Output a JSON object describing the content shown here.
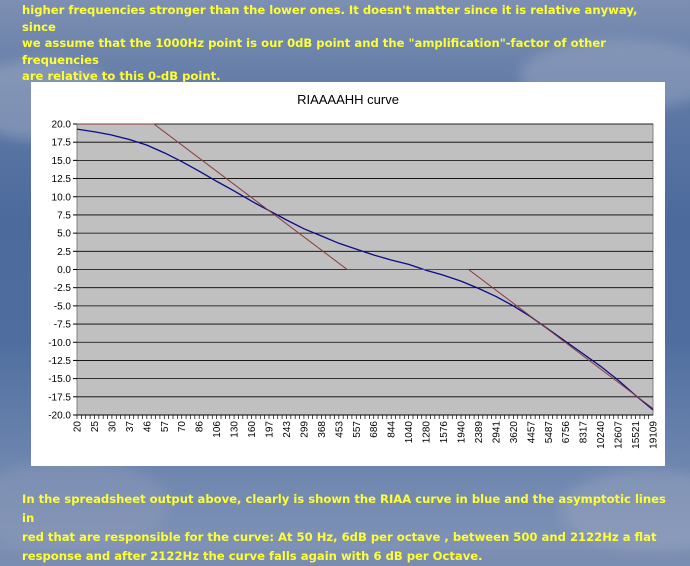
{
  "text": {
    "top_lines": [
      "higher frequencies stronger than the lower ones. It doesn't matter since it is relative anyway, since",
      "we assume that the 1000Hz point is our 0dB point and the \"amplification\"-factor of other frequencies",
      "are relative to this 0-dB point."
    ],
    "bottom_lines": [
      "In the spreadsheet output above, clearly is shown the RIAA curve in blue and the asymptotic lines in",
      "red that are responsible for the curve: At 50 Hz, 6dB per octave , between 500 and 2122Hz a flat",
      "response and after 2122Hz the curve falls again with 6 dB per Octave."
    ]
  },
  "colors": {
    "text": "#ffff33",
    "plot_bg": "#c0c0c0",
    "riaa": "#0a0a8c",
    "asymptote": "#8b3a3a"
  },
  "chart_data": {
    "type": "line",
    "title": "RIAAAAHH  curve",
    "x_scale": "log",
    "x_tick_labels": [
      "20",
      "25",
      "30",
      "37",
      "46",
      "57",
      "70",
      "86",
      "106",
      "130",
      "160",
      "197",
      "243",
      "299",
      "368",
      "453",
      "557",
      "686",
      "844",
      "1040",
      "1280",
      "1576",
      "1940",
      "2389",
      "2941",
      "3620",
      "4457",
      "5487",
      "6756",
      "8317",
      "10240",
      "12607",
      "15521",
      "19109"
    ],
    "y_tick_labels": [
      "20.0",
      "17.5",
      "15.0",
      "12.5",
      "10.0",
      "7.5",
      "5.0",
      "2.5",
      "0.0",
      "-2.5",
      "-5.0",
      "-7.5",
      "-10.0",
      "-12.5",
      "-15.0",
      "-17.5",
      "-20.0"
    ],
    "ylim": [
      -20,
      20
    ],
    "xlim": [
      20,
      20000
    ],
    "grid": "horizontal",
    "series": [
      {
        "color": "#0a0a8c",
        "points": [
          [
            20,
            19.3
          ],
          [
            25,
            18.9
          ],
          [
            30,
            18.5
          ],
          [
            37,
            17.9
          ],
          [
            46,
            17.1
          ],
          [
            57,
            16.0
          ],
          [
            70,
            14.8
          ],
          [
            86,
            13.5
          ],
          [
            106,
            12.1
          ],
          [
            130,
            10.8
          ],
          [
            160,
            9.4
          ],
          [
            197,
            8.1
          ],
          [
            243,
            6.8
          ],
          [
            299,
            5.6
          ],
          [
            368,
            4.6
          ],
          [
            453,
            3.6
          ],
          [
            557,
            2.8
          ],
          [
            686,
            2.0
          ],
          [
            844,
            1.3
          ],
          [
            1040,
            0.7
          ],
          [
            1280,
            -0.1
          ],
          [
            1576,
            -0.8
          ],
          [
            1940,
            -1.6
          ],
          [
            2389,
            -2.6
          ],
          [
            2941,
            -3.7
          ],
          [
            3620,
            -5.0
          ],
          [
            4457,
            -6.5
          ],
          [
            5487,
            -8.2
          ],
          [
            6756,
            -9.9
          ],
          [
            8317,
            -11.6
          ],
          [
            10240,
            -13.3
          ],
          [
            12607,
            -15.2
          ],
          [
            15521,
            -17.3
          ],
          [
            19109,
            -19.3
          ]
        ]
      },
      {
        "color": "#8b3a3a",
        "points": [
          [
            20,
            20
          ],
          [
            50,
            20
          ],
          [
            500,
            0
          ],
          [
            2122,
            0
          ],
          [
            19109,
            -19.1
          ]
        ]
      }
    ]
  }
}
